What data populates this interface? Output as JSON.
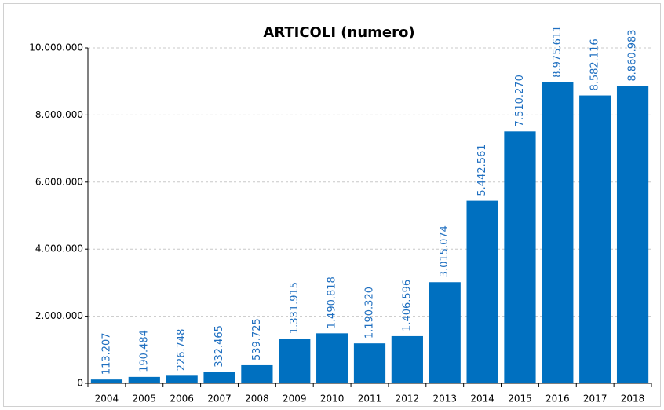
{
  "chart_data": {
    "type": "bar",
    "title": "ARTICOLI (numero)",
    "categories": [
      "2004",
      "2005",
      "2006",
      "2007",
      "2008",
      "2009",
      "2010",
      "2011",
      "2012",
      "2013",
      "2014",
      "2015",
      "2016",
      "2017",
      "2018"
    ],
    "values": [
      113207,
      190484,
      226748,
      332465,
      539725,
      1331915,
      1490818,
      1190320,
      1406596,
      3015074,
      5442561,
      7510270,
      8975611,
      8582116,
      8860983
    ],
    "value_labels": [
      "113.207",
      "190.484",
      "226.748",
      "332.465",
      "539.725",
      "1.331.915",
      "1.490.818",
      "1.190.320",
      "1.406.596",
      "3.015.074",
      "5.442.561",
      "7.510.270",
      "8.975.611",
      "8.582.116",
      "8.860.983"
    ],
    "color": "#0070c0",
    "ylim": [
      0,
      10000000
    ],
    "yticks": [
      0,
      {
        "value": 2000000,
        "label": "2.000.000"
      },
      {
        "value": 4000000,
        "label": "4.000.000"
      },
      {
        "value": 6000000,
        "label": "6.000.000"
      },
      {
        "value": 8000000,
        "label": "8.000.000"
      },
      {
        "value": 10000000,
        "label": "10.000.000"
      }
    ],
    "grid": true
  }
}
